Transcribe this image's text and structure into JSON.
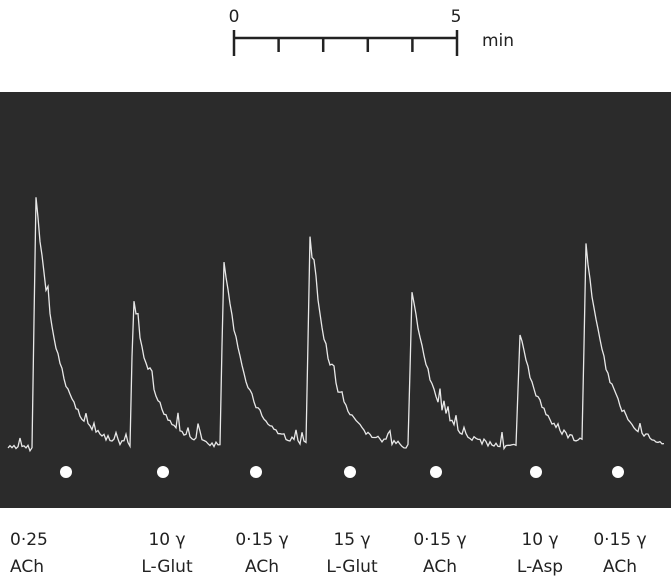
{
  "scale_bar": {
    "start": "0",
    "end": "5",
    "unit": "min"
  },
  "injections": [
    {
      "dose": "0·25",
      "drug": "ACh"
    },
    {
      "dose": "10 γ",
      "drug": "L-Glut"
    },
    {
      "dose": "0·15 γ",
      "drug": "ACh"
    },
    {
      "dose": "15 γ",
      "drug": "L-Glut"
    },
    {
      "dose": "0·15 γ",
      "drug": "ACh"
    },
    {
      "dose": "10 γ",
      "drug": "L-Asp"
    },
    {
      "dose": "0·15 γ",
      "drug": "ACh"
    }
  ]
}
